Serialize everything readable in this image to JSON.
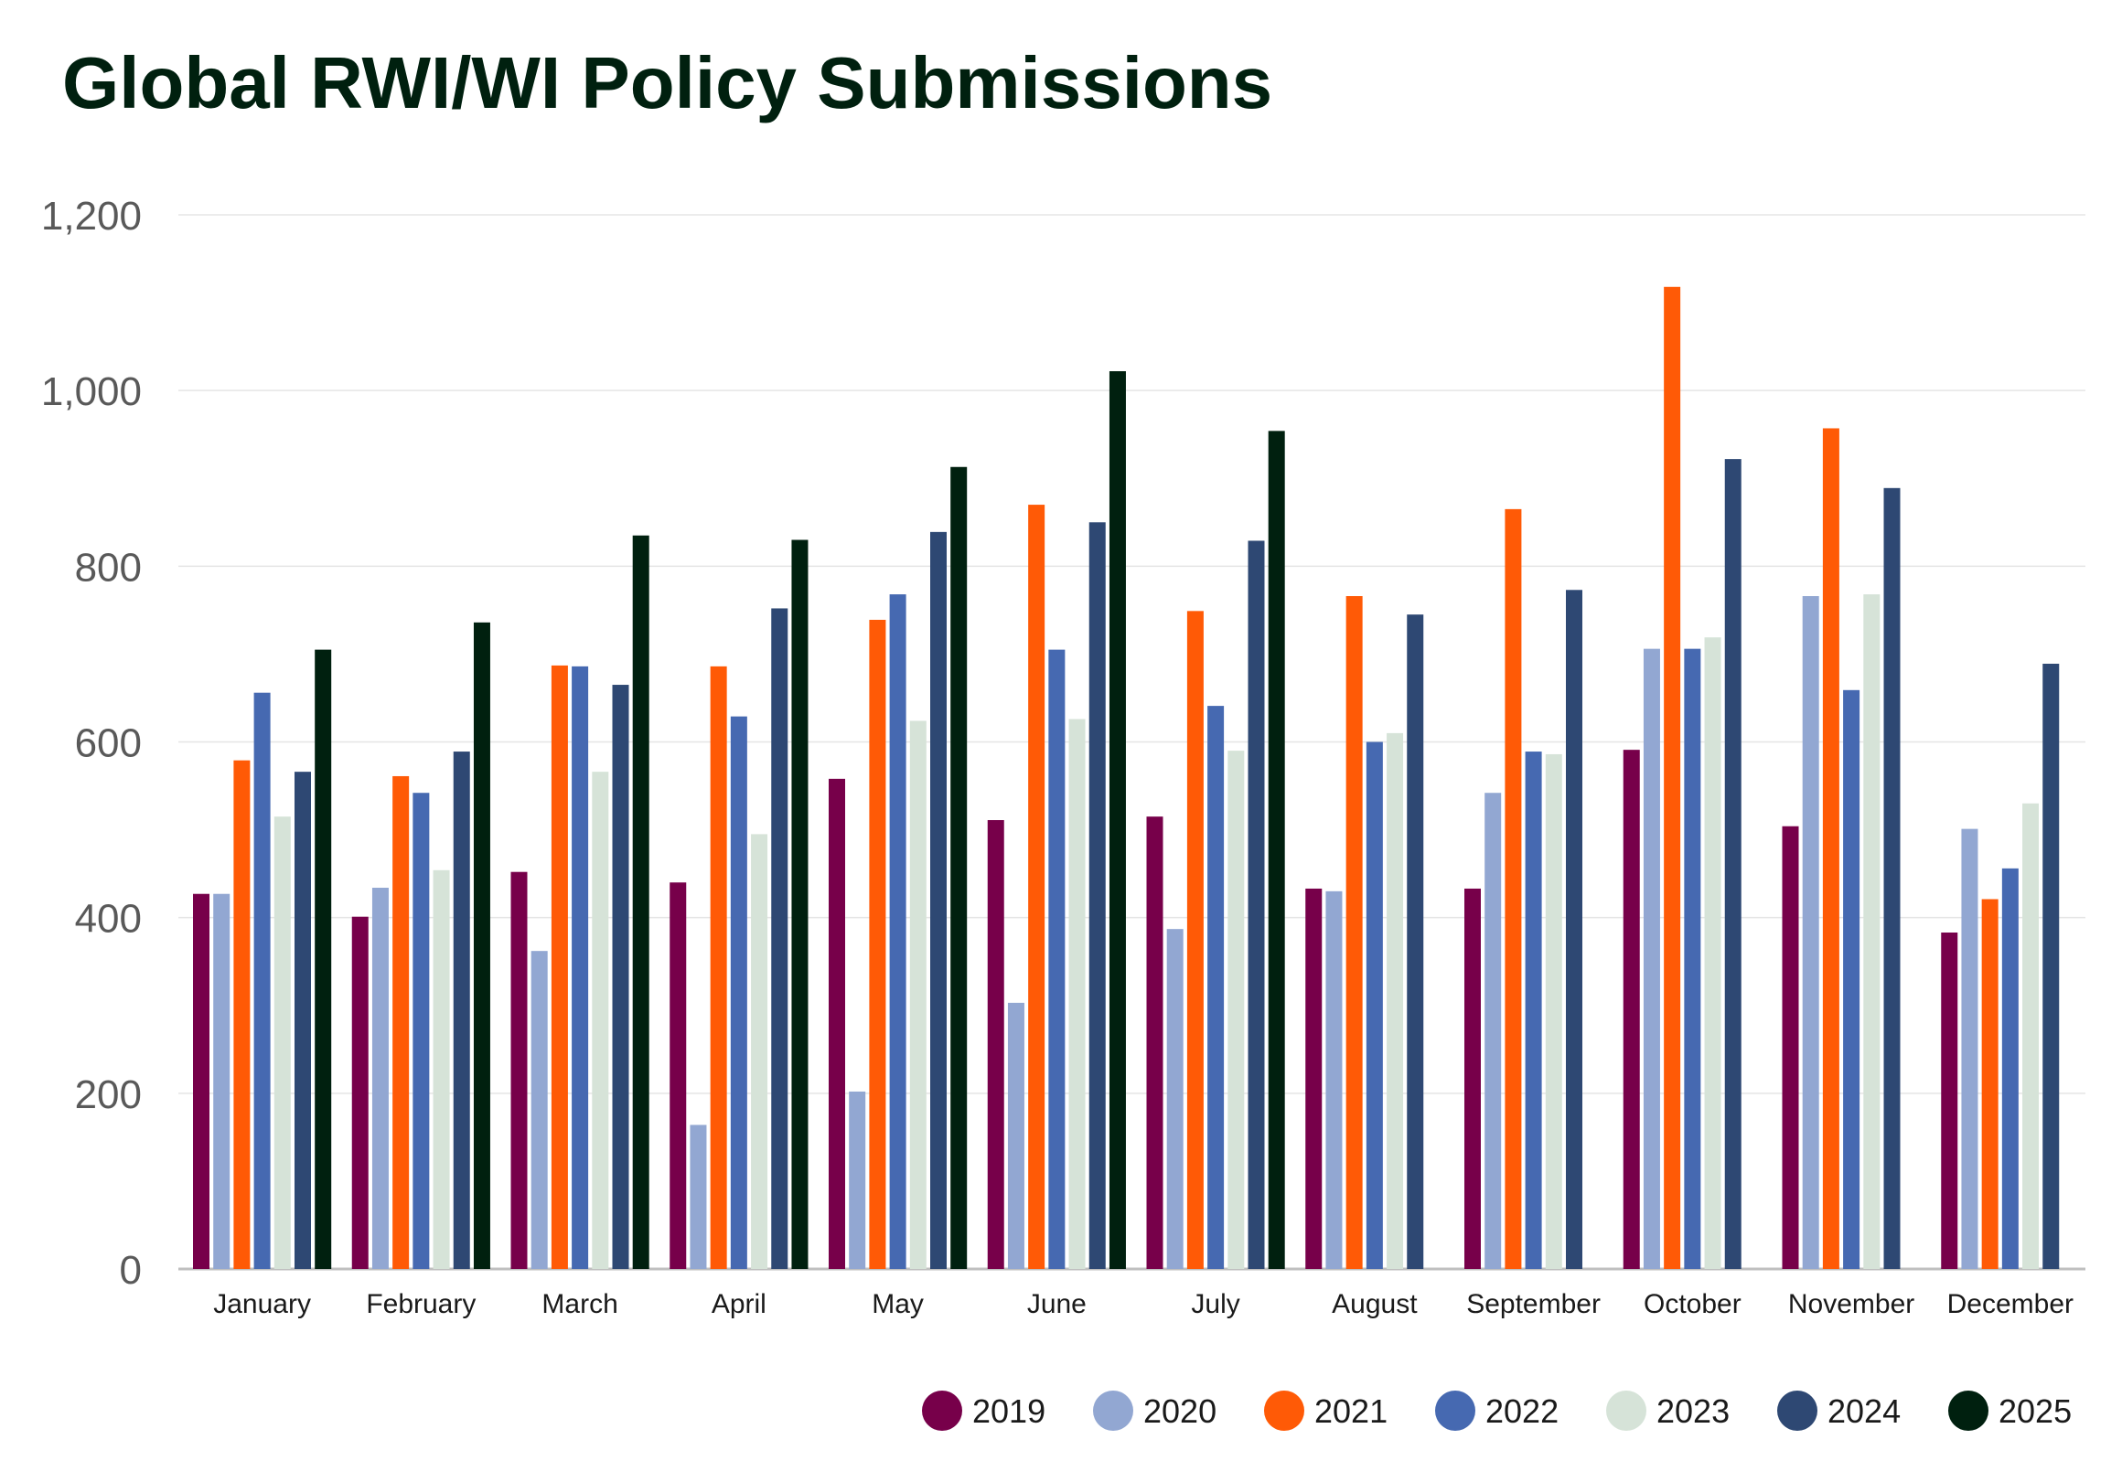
{
  "chart_data": {
    "type": "bar",
    "title": "Global RWI/WI Policy Submissions",
    "xlabel": "",
    "ylabel": "",
    "ylim": [
      0,
      1200
    ],
    "yticks": [
      0,
      200,
      400,
      600,
      800,
      1000,
      1200
    ],
    "ytick_labels": [
      "0",
      "200",
      "400",
      "600",
      "800",
      "1,000",
      "1,200"
    ],
    "grid": true,
    "legend_position": "bottom-right",
    "categories": [
      "January",
      "February",
      "March",
      "April",
      "May",
      "June",
      "July",
      "August",
      "September",
      "October",
      "November",
      "December"
    ],
    "series": [
      {
        "name": "2019",
        "color": "#77004a",
        "values": [
          427,
          401,
          452,
          440,
          558,
          511,
          515,
          433,
          433,
          591,
          504,
          383
        ]
      },
      {
        "name": "2020",
        "color": "#92a7d2",
        "values": [
          427,
          434,
          362,
          164,
          202,
          303,
          387,
          430,
          542,
          706,
          766,
          501
        ]
      },
      {
        "name": "2021",
        "color": "#ff5a06",
        "values": [
          579,
          561,
          687,
          686,
          739,
          870,
          749,
          766,
          865,
          1118,
          957,
          421
        ]
      },
      {
        "name": "2022",
        "color": "#4669b1",
        "values": [
          656,
          542,
          686,
          629,
          768,
          705,
          641,
          600,
          589,
          706,
          659,
          456
        ]
      },
      {
        "name": "2023",
        "color": "#d6e3d8",
        "values": [
          515,
          454,
          566,
          495,
          624,
          626,
          590,
          610,
          586,
          719,
          768,
          530
        ]
      },
      {
        "name": "2024",
        "color": "#2e4873",
        "values": [
          566,
          589,
          665,
          752,
          839,
          850,
          829,
          745,
          773,
          922,
          889,
          689
        ]
      },
      {
        "name": "2025",
        "color": "#00200f",
        "values": [
          705,
          736,
          835,
          830,
          913,
          1022,
          954,
          null,
          null,
          null,
          null,
          null
        ]
      }
    ]
  }
}
